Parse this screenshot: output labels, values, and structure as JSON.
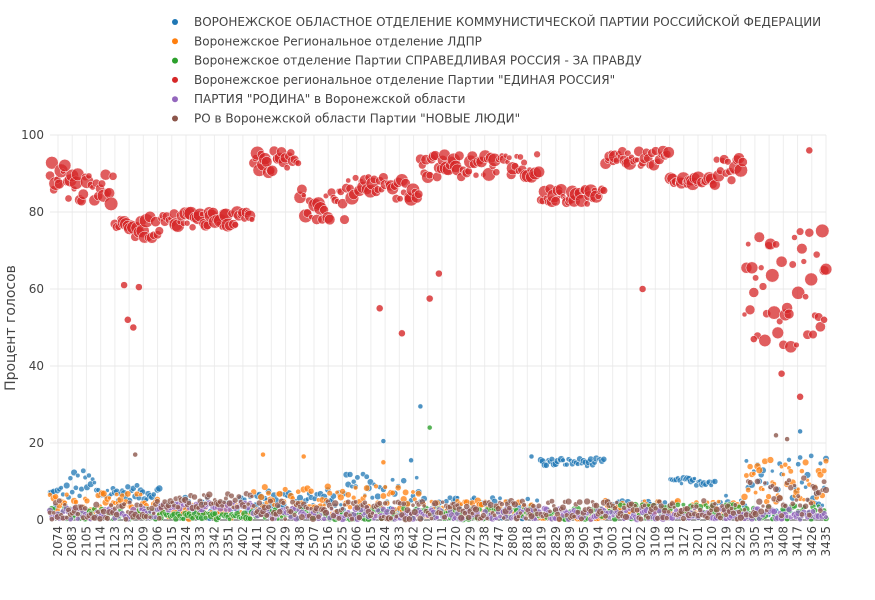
{
  "chart_data": {
    "type": "scatter",
    "title": "",
    "xlabel": "",
    "ylabel": "Процент голосов",
    "ylim": [
      0,
      100
    ],
    "yticks": [
      0,
      20,
      40,
      60,
      80,
      100
    ],
    "x_tick_labels": [
      "2074",
      "2083",
      "2105",
      "2114",
      "2123",
      "2132",
      "2209",
      "2306",
      "2315",
      "2324",
      "2333",
      "2342",
      "2351",
      "2402",
      "2411",
      "2420",
      "2429",
      "2438",
      "2507",
      "2516",
      "2525",
      "2606",
      "2615",
      "2624",
      "2633",
      "2642",
      "2702",
      "2711",
      "2720",
      "2729",
      "2738",
      "2747",
      "2808",
      "2818",
      "2819",
      "2829",
      "2839",
      "2905",
      "2914",
      "3003",
      "3012",
      "3022",
      "3109",
      "3118",
      "3127",
      "3201",
      "3210",
      "3219",
      "3229",
      "3305",
      "3314",
      "3408",
      "3417",
      "3426",
      "3435"
    ],
    "legend_position": "top",
    "series": [
      {
        "name": "ВОРОНЕЖСКОЕ ОБЛАСТНОЕ ОТДЕЛЕНИЕ КОММУНИСТИЧЕСКОЙ ПАРТИИ РОССИЙСКОЙ ФЕДЕРАЦИИ",
        "color": "#1f77b4",
        "segments": [
          {
            "from": 0,
            "to": 10,
            "level": 6,
            "spread": 4
          },
          {
            "from": 10,
            "to": 25,
            "level": 9,
            "spread": 4
          },
          {
            "from": 25,
            "to": 60,
            "level": 7,
            "spread": 2
          },
          {
            "from": 60,
            "to": 110,
            "level": 3,
            "spread": 3
          },
          {
            "from": 110,
            "to": 160,
            "level": 5,
            "spread": 3
          },
          {
            "from": 160,
            "to": 200,
            "level": 7,
            "spread": 5
          },
          {
            "from": 200,
            "to": 265,
            "level": 3,
            "spread": 3
          },
          {
            "from": 265,
            "to": 300,
            "level": 15,
            "spread": 1
          },
          {
            "from": 300,
            "to": 335,
            "level": 3,
            "spread": 2
          },
          {
            "from": 335,
            "to": 360,
            "level": 10,
            "spread": 1
          },
          {
            "from": 360,
            "to": 375,
            "level": 4,
            "spread": 3
          },
          {
            "from": 375,
            "to": 420,
            "level": 9,
            "spread": 8
          }
        ],
        "outliers": [
          [
            180,
            20.5
          ],
          [
            200,
            29.5
          ],
          [
            195,
            15.5
          ],
          [
            260,
            16.5
          ],
          [
            405,
            23
          ]
        ]
      },
      {
        "name": "Воронежское Региональное отделение ЛДПР",
        "color": "#ff7f0e",
        "segments": [
          {
            "from": 0,
            "to": 60,
            "level": 4,
            "spread": 3
          },
          {
            "from": 60,
            "to": 110,
            "level": 2,
            "spread": 2
          },
          {
            "from": 110,
            "to": 200,
            "level": 5,
            "spread": 4
          },
          {
            "from": 200,
            "to": 265,
            "level": 3,
            "spread": 2
          },
          {
            "from": 265,
            "to": 300,
            "level": 0.5,
            "spread": 0.5
          },
          {
            "from": 300,
            "to": 375,
            "level": 3,
            "spread": 2
          },
          {
            "from": 375,
            "to": 420,
            "level": 10,
            "spread": 6
          }
        ],
        "outliers": [
          [
            115,
            17
          ],
          [
            137,
            16.5
          ],
          [
            180,
            15
          ]
        ]
      },
      {
        "name": "Воронежское отделение Партии СПРАВЕДЛИВАЯ РОССИЯ - ЗА ПРАВДУ",
        "color": "#2ca02c",
        "segments": [
          {
            "from": 0,
            "to": 60,
            "level": 1.5,
            "spread": 1.5
          },
          {
            "from": 60,
            "to": 110,
            "level": 1,
            "spread": 1
          },
          {
            "from": 110,
            "to": 300,
            "level": 1.5,
            "spread": 1.5
          },
          {
            "from": 300,
            "to": 420,
            "level": 2,
            "spread": 2
          }
        ],
        "outliers": [
          [
            205,
            24
          ]
        ]
      },
      {
        "name": "Воронежское региональное отделение Партии \"ЕДИНАЯ РОССИЯ\"",
        "color": "#d62728",
        "segments": [
          {
            "from": 0,
            "to": 10,
            "level": 88,
            "spread": 5
          },
          {
            "from": 10,
            "to": 35,
            "level": 86,
            "spread": 4
          },
          {
            "from": 35,
            "to": 60,
            "level": 76,
            "spread": 3
          },
          {
            "from": 60,
            "to": 110,
            "level": 78,
            "spread": 2
          },
          {
            "from": 110,
            "to": 135,
            "level": 93,
            "spread": 3
          },
          {
            "from": 135,
            "to": 160,
            "level": 83,
            "spread": 5
          },
          {
            "from": 160,
            "to": 200,
            "level": 86,
            "spread": 3
          },
          {
            "from": 200,
            "to": 265,
            "level": 92,
            "spread": 3
          },
          {
            "from": 265,
            "to": 300,
            "level": 84,
            "spread": 2
          },
          {
            "from": 300,
            "to": 335,
            "level": 94,
            "spread": 2
          },
          {
            "from": 335,
            "to": 360,
            "level": 88,
            "spread": 1
          },
          {
            "from": 360,
            "to": 375,
            "level": 91,
            "spread": 3
          },
          {
            "from": 375,
            "to": 420,
            "level": 60,
            "spread": 16
          }
        ],
        "outliers": [
          [
            40,
            61
          ],
          [
            42,
            52
          ],
          [
            45,
            50
          ],
          [
            48,
            60.5
          ],
          [
            178,
            55
          ],
          [
            190,
            48.5
          ],
          [
            205,
            57.5
          ],
          [
            210,
            64
          ],
          [
            320,
            60
          ],
          [
            380,
            47
          ],
          [
            395,
            38
          ],
          [
            405,
            32
          ],
          [
            410,
            96
          ],
          [
            418,
            52
          ]
        ]
      },
      {
        "name": "ПАРТИЯ \"РОДИНА\" в Воронежской области",
        "color": "#9467bd",
        "segments": [
          {
            "from": 0,
            "to": 60,
            "level": 1.5,
            "spread": 1.5
          },
          {
            "from": 60,
            "to": 110,
            "level": 3.5,
            "spread": 1
          },
          {
            "from": 110,
            "to": 420,
            "level": 1.5,
            "spread": 1.5
          }
        ],
        "outliers": []
      },
      {
        "name": "РО в Воронежской области Партии \"НОВЫЕ ЛЮДИ\"",
        "color": "#8c564b",
        "segments": [
          {
            "from": 0,
            "to": 60,
            "level": 2.5,
            "spread": 2.5
          },
          {
            "from": 60,
            "to": 110,
            "level": 5,
            "spread": 2
          },
          {
            "from": 110,
            "to": 375,
            "level": 2.5,
            "spread": 2.5
          },
          {
            "from": 375,
            "to": 420,
            "level": 6,
            "spread": 5
          }
        ],
        "outliers": [
          [
            46,
            17
          ],
          [
            392,
            22
          ],
          [
            398,
            21
          ]
        ]
      }
    ]
  }
}
